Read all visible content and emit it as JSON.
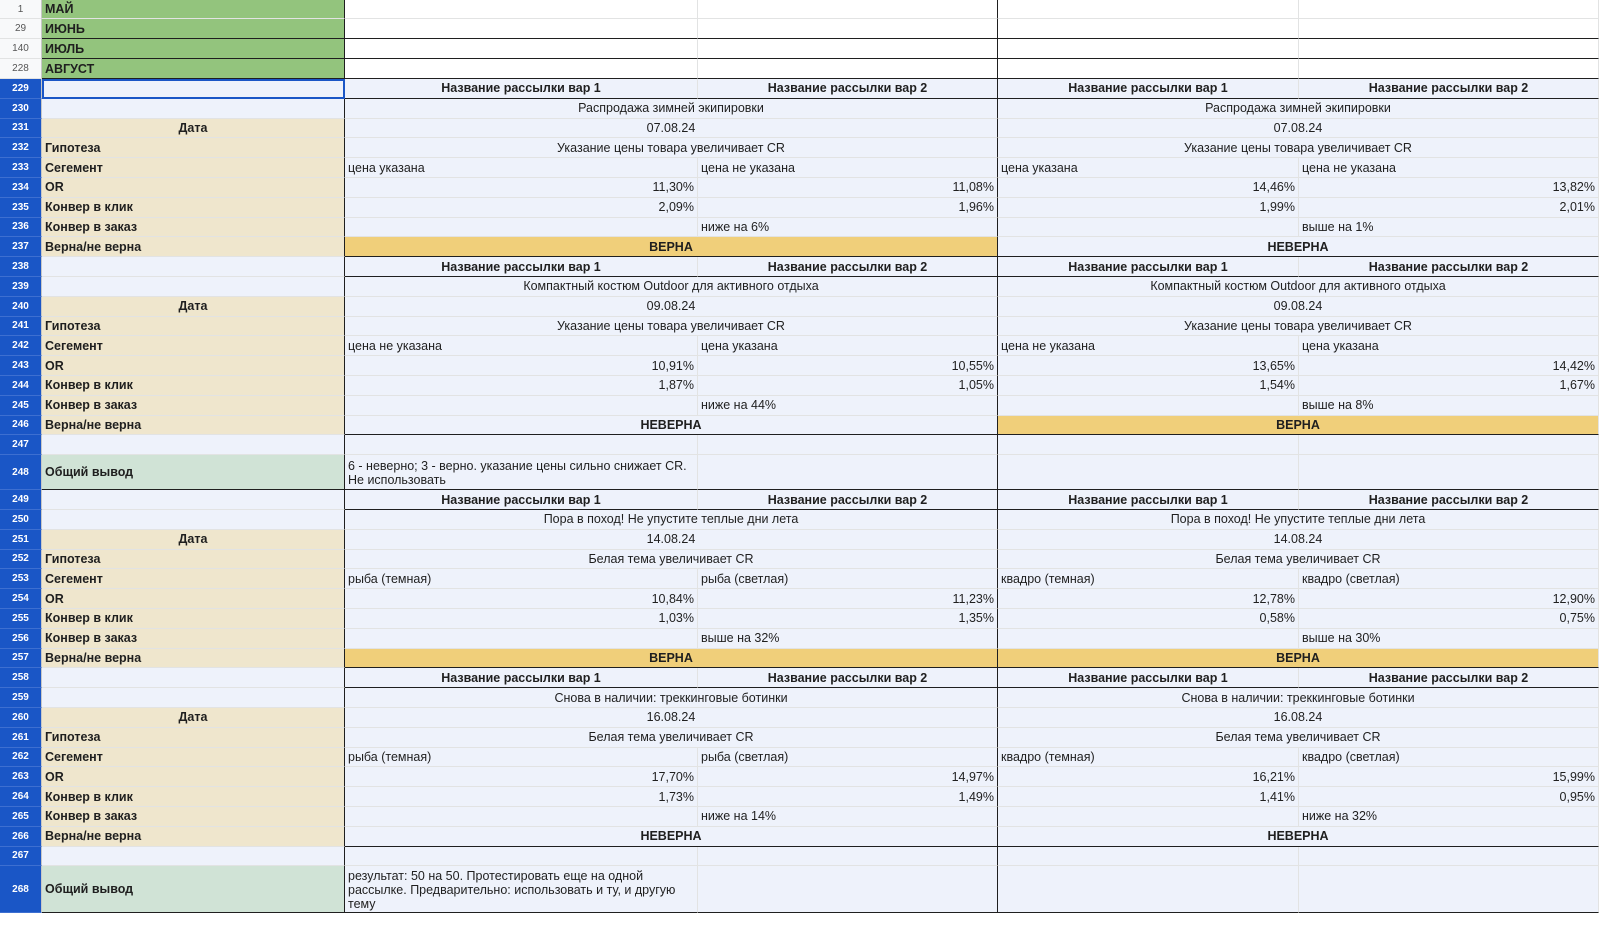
{
  "month_rows": [
    {
      "num": "1",
      "label": "МАЙ"
    },
    {
      "num": "29",
      "label": "ИЮНЬ"
    },
    {
      "num": "140",
      "label": "ИЮЛЬ"
    },
    {
      "num": "228",
      "label": "АВГУСТ"
    }
  ],
  "labels": {
    "date": "Дата",
    "hypothesis": "Гипотеза",
    "segment": "Сегемент",
    "or": "OR",
    "conv_click": "Конвер в клик",
    "conv_order": "Конвер в заказ",
    "verdict": "Верна/не верна",
    "overall": "Общий вывод"
  },
  "variant_headers": [
    "Название рассылки вар 1",
    "Название рассылки вар 2",
    "Название рассылки вар 1",
    "Название рассылки вар 2"
  ],
  "blocks": [
    {
      "rows": {
        "header": "229",
        "title": "230",
        "date": "231",
        "hypothesis": "232",
        "segment": "233",
        "or": "234",
        "conv_click": "235",
        "conv_order": "236",
        "verdict": "237"
      },
      "left": {
        "title": "Распродажа зимней экипировки",
        "date": "07.08.24",
        "hypothesis": "Указание цены товара увеличивает CR",
        "seg1": "цена указана",
        "seg2": "цена не указана",
        "or1": "11,30%",
        "or2": "11,08%",
        "click1": "2,09%",
        "click2": "1,96%",
        "order2": "ниже на 6%",
        "verdict": "ВЕРНА",
        "correct": true
      },
      "right": {
        "title": "Распродажа зимней экипировки",
        "date": "07.08.24",
        "hypothesis": "Указание цены товара увеличивает CR",
        "seg1": "цена указана",
        "seg2": "цена не указана",
        "or1": "14,46%",
        "or2": "13,82%",
        "click1": "1,99%",
        "click2": "2,01%",
        "order2": "выше на 1%",
        "verdict": "НЕВЕРНА",
        "correct": false
      }
    },
    {
      "rows": {
        "header": "238",
        "title": "239",
        "date": "240",
        "hypothesis": "241",
        "segment": "242",
        "or": "243",
        "conv_click": "244",
        "conv_order": "245",
        "verdict": "246"
      },
      "left": {
        "title": "Компактный костюм Outdoor для активного отдыха",
        "date": "09.08.24",
        "hypothesis": "Указание цены товара увеличивает CR",
        "seg1": "цена не указана",
        "seg2": "цена указана",
        "or1": "10,91%",
        "or2": "10,55%",
        "click1": "1,87%",
        "click2": "1,05%",
        "order2": "ниже на 44%",
        "verdict": "НЕВЕРНА",
        "correct": false
      },
      "right": {
        "title": "Компактный костюм Outdoor для активного отдыха",
        "date": "09.08.24",
        "hypothesis": "Указание цены товара увеличивает CR",
        "seg1": "цена не указана",
        "seg2": "цена указана",
        "or1": "13,65%",
        "or2": "14,42%",
        "click1": "1,54%",
        "click2": "1,67%",
        "order2": "выше на 8%",
        "verdict": "ВЕРНА",
        "correct": true
      }
    },
    {
      "rows": {
        "header": "249",
        "title": "250",
        "date": "251",
        "hypothesis": "252",
        "segment": "253",
        "or": "254",
        "conv_click": "255",
        "conv_order": "256",
        "verdict": "257"
      },
      "left": {
        "title": "Пора в поход! Не упустите теплые дни лета",
        "date": "14.08.24",
        "hypothesis": "Белая тема увеличивает CR",
        "seg1": "рыба (темная)",
        "seg2": "рыба (светлая)",
        "or1": "10,84%",
        "or2": "11,23%",
        "click1": "1,03%",
        "click2": "1,35%",
        "order2": "выше на 32%",
        "verdict": "ВЕРНА",
        "correct": true
      },
      "right": {
        "title": "Пора в поход! Не упустите теплые дни лета",
        "date": "14.08.24",
        "hypothesis": "Белая тема увеличивает CR",
        "seg1": "квадро (темная)",
        "seg2": "квадро (светлая)",
        "or1": "12,78%",
        "or2": "12,90%",
        "click1": "0,58%",
        "click2": "0,75%",
        "order2": "выше на 30%",
        "verdict": "ВЕРНА",
        "correct": true
      }
    },
    {
      "rows": {
        "header": "258",
        "title": "259",
        "date": "260",
        "hypothesis": "261",
        "segment": "262",
        "or": "263",
        "conv_click": "264",
        "conv_order": "265",
        "verdict": "266"
      },
      "left": {
        "title": "Снова в наличии: треккинговые ботинки",
        "date": "16.08.24",
        "hypothesis": "Белая тема увеличивает CR",
        "seg1": "рыба (темная)",
        "seg2": "рыба (светлая)",
        "or1": "17,70%",
        "or2": "14,97%",
        "click1": "1,73%",
        "click2": "1,49%",
        "order2": "ниже на 14%",
        "verdict": "НЕВЕРНА",
        "correct": false
      },
      "right": {
        "title": "Снова в наличии: треккинговые ботинки",
        "date": "16.08.24",
        "hypothesis": "Белая тема увеличивает CR",
        "seg1": "квадро (темная)",
        "seg2": "квадро (светлая)",
        "or1": "16,21%",
        "or2": "15,99%",
        "click1": "1,41%",
        "click2": "0,95%",
        "order2": "ниже на 32%",
        "verdict": "НЕВЕРНА",
        "correct": false
      }
    }
  ],
  "summaries": [
    {
      "spacer_row": "247",
      "row": "248",
      "text": "6 - неверно; 3 - верно. указание цены сильно снижает CR. Не использовать"
    },
    {
      "spacer_row": "267",
      "row": "268",
      "text": "результат: 50 на 50. Протестировать еще на одной рассылке. Предварительно: использовать и ту, и другую тему"
    }
  ],
  "colors": {
    "month_bg": "#93c47d",
    "label_bg": "#efe6cd",
    "summary_bg": "#d0e3d6",
    "data_bg": "#eef2fb",
    "correct_bg": "#f0cf7a",
    "selection": "#1a56c6"
  }
}
